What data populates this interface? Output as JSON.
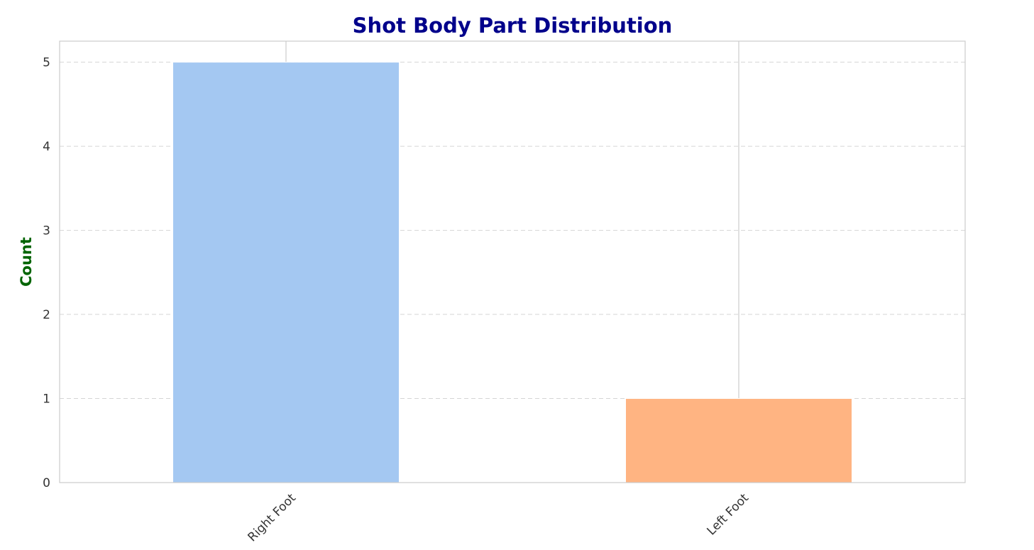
{
  "chart_data": {
    "type": "bar",
    "title": "Shot Body Part Distribution",
    "xlabel": "",
    "ylabel": "Count",
    "categories": [
      "Right Foot",
      "Left Foot"
    ],
    "values": [
      5,
      1
    ],
    "bar_colors": [
      "#a4c8f2",
      "#ffb482"
    ],
    "ylim": [
      0,
      5.25
    ],
    "yticks": [
      0,
      1,
      2,
      3,
      4,
      5
    ],
    "grid": true,
    "legend": "none",
    "x_tick_rotation": -45
  },
  "colors": {
    "title": "#00008b",
    "ylabel": "#006400",
    "tick": "#333333",
    "grid": "#d5d5d5",
    "frame": "#cccccc"
  }
}
